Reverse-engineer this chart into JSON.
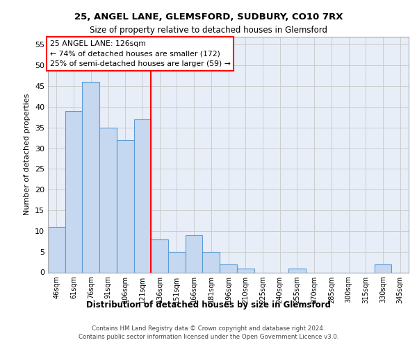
{
  "title1": "25, ANGEL LANE, GLEMSFORD, SUDBURY, CO10 7RX",
  "title2": "Size of property relative to detached houses in Glemsford",
  "xlabel": "Distribution of detached houses by size in Glemsford",
  "ylabel": "Number of detached properties",
  "categories": [
    "46sqm",
    "61sqm",
    "76sqm",
    "91sqm",
    "106sqm",
    "121sqm",
    "136sqm",
    "151sqm",
    "166sqm",
    "181sqm",
    "196sqm",
    "210sqm",
    "225sqm",
    "240sqm",
    "255sqm",
    "270sqm",
    "285sqm",
    "300sqm",
    "315sqm",
    "330sqm",
    "345sqm"
  ],
  "values": [
    11,
    39,
    46,
    35,
    32,
    37,
    8,
    5,
    9,
    5,
    2,
    1,
    0,
    0,
    1,
    0,
    0,
    0,
    0,
    2,
    0
  ],
  "bar_color": "#c5d8f0",
  "bar_edge_color": "#5b9bd5",
  "ref_line_x": 5.5,
  "annotation_text": "25 ANGEL LANE: 126sqm\n← 74% of detached houses are smaller (172)\n25% of semi-detached houses are larger (59) →",
  "ylim": [
    0,
    57
  ],
  "yticks": [
    0,
    5,
    10,
    15,
    20,
    25,
    30,
    35,
    40,
    45,
    50,
    55
  ],
  "footnote": "Contains HM Land Registry data © Crown copyright and database right 2024.\nContains public sector information licensed under the Open Government Licence v3.0.",
  "grid_color": "#cccccc",
  "bg_color": "#e8eef8"
}
